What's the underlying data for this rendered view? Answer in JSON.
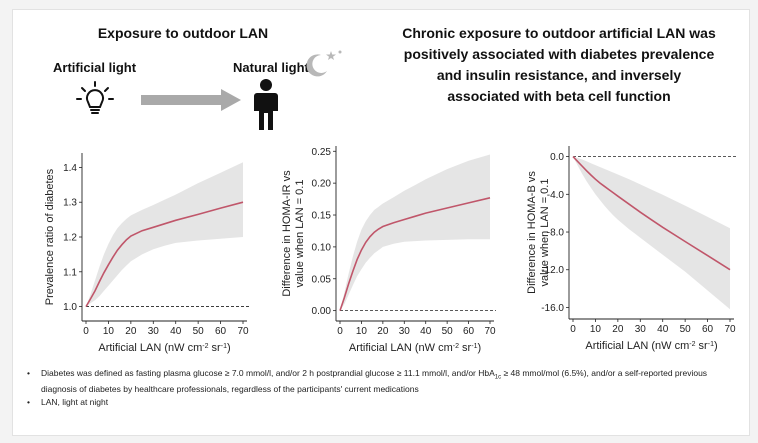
{
  "header": {
    "left_title": "Exposure to outdoor LAN",
    "artificial_label": "Artificial light",
    "natural_label": "Natural light",
    "conclusion_lines": [
      "Chronic exposure to outdoor artificial LAN was",
      "positively associated with diabetes prevalence",
      "and insulin resistance, and inversely",
      "associated with beta cell function"
    ]
  },
  "icons": {
    "bulb": "lightbulb-icon",
    "arrow": "arrow-right-icon",
    "person": "person-icon",
    "moon": "moon-icon",
    "stars": "star-icon"
  },
  "colors": {
    "line": "#c0566a",
    "ci": "#e5e5e5",
    "arrow": "#a9a9a9"
  },
  "chart_data": [
    {
      "type": "line",
      "name": "prevalence",
      "xlabel_main": "Artificial LAN (nW cm",
      "xlabel_sup1": "-2",
      "xlabel_mid": " sr",
      "xlabel_sup2": "-1",
      "xlabel_end": ")",
      "ylabel_lines": [
        "Prevalence ratio of diabetes"
      ],
      "xlim": [
        0,
        70
      ],
      "ylim": [
        0.97,
        1.43
      ],
      "xticks": [
        "0",
        "10",
        "20",
        "30",
        "40",
        "50",
        "60",
        "70"
      ],
      "yticks": [
        "1.0",
        "1.1",
        "1.2",
        "1.3",
        "1.4"
      ],
      "ytick_values": [
        1.0,
        1.1,
        1.2,
        1.3,
        1.4
      ],
      "reference": 1.0,
      "x": [
        0,
        2,
        4,
        6,
        8,
        10,
        12,
        14,
        16,
        18,
        20,
        25,
        30,
        35,
        40,
        50,
        60,
        70
      ],
      "y": [
        1.0,
        1.022,
        1.045,
        1.072,
        1.097,
        1.12,
        1.142,
        1.162,
        1.178,
        1.192,
        1.203,
        1.218,
        1.228,
        1.238,
        1.248,
        1.265,
        1.283,
        1.3
      ],
      "upper": [
        1.0,
        1.035,
        1.075,
        1.115,
        1.15,
        1.18,
        1.205,
        1.225,
        1.24,
        1.252,
        1.262,
        1.278,
        1.292,
        1.307,
        1.322,
        1.355,
        1.385,
        1.415
      ],
      "lower": [
        1.0,
        1.01,
        1.018,
        1.03,
        1.045,
        1.06,
        1.075,
        1.09,
        1.105,
        1.118,
        1.13,
        1.15,
        1.165,
        1.175,
        1.183,
        1.19,
        1.195,
        1.2
      ]
    },
    {
      "type": "line",
      "name": "homa-ir",
      "xlabel_main": "Artificial LAN (nW cm",
      "xlabel_sup1": "-2",
      "xlabel_mid": " sr",
      "xlabel_sup2": "-1",
      "xlabel_end": ")",
      "ylabel_lines": [
        "Difference in HOMA-IR vs",
        "value when LAN = 0.1"
      ],
      "xlim": [
        0,
        70
      ],
      "ylim": [
        -0.01,
        0.252
      ],
      "xticks": [
        "0",
        "10",
        "20",
        "30",
        "40",
        "50",
        "60",
        "70"
      ],
      "yticks": [
        "0.00",
        "0.05",
        "0.10",
        "0.15",
        "0.20",
        "0.25"
      ],
      "ytick_values": [
        0.0,
        0.05,
        0.1,
        0.15,
        0.2,
        0.25
      ],
      "reference": 0.0,
      "x": [
        0,
        2,
        4,
        6,
        8,
        10,
        12,
        14,
        16,
        18,
        20,
        25,
        30,
        35,
        40,
        50,
        60,
        70
      ],
      "y": [
        0.0,
        0.02,
        0.042,
        0.062,
        0.08,
        0.095,
        0.107,
        0.116,
        0.123,
        0.128,
        0.132,
        0.138,
        0.143,
        0.148,
        0.153,
        0.161,
        0.169,
        0.177
      ],
      "upper": [
        0.0,
        0.028,
        0.058,
        0.085,
        0.108,
        0.127,
        0.14,
        0.15,
        0.158,
        0.163,
        0.168,
        0.178,
        0.188,
        0.197,
        0.206,
        0.222,
        0.235,
        0.245
      ],
      "lower": [
        0.0,
        0.01,
        0.025,
        0.04,
        0.054,
        0.065,
        0.075,
        0.083,
        0.09,
        0.095,
        0.1,
        0.105,
        0.108,
        0.109,
        0.11,
        0.111,
        0.112,
        0.112
      ]
    },
    {
      "type": "line",
      "name": "homa-b",
      "xlabel_main": "Artificial LAN (nW cm",
      "xlabel_sup1": "-2",
      "xlabel_mid": " sr",
      "xlabel_sup2": "-1",
      "xlabel_end": ")",
      "ylabel_lines": [
        "Difference in HOMA-B vs",
        "value when LAN = 0.1"
      ],
      "xlim": [
        0,
        70
      ],
      "ylim": [
        -16.8,
        0.7
      ],
      "xticks": [
        "0",
        "10",
        "20",
        "30",
        "40",
        "50",
        "60",
        "70"
      ],
      "yticks": [
        "0.0",
        "-4.0",
        "-8.0",
        "-12.0",
        "-16.0"
      ],
      "ytick_values": [
        0.0,
        -4.0,
        -8.0,
        -12.0,
        -16.0
      ],
      "reference": 0.0,
      "x": [
        0,
        2,
        4,
        6,
        8,
        10,
        12,
        14,
        16,
        18,
        20,
        25,
        30,
        35,
        40,
        50,
        60,
        70
      ],
      "y": [
        0.0,
        -0.5,
        -1.0,
        -1.5,
        -1.95,
        -2.4,
        -2.8,
        -3.15,
        -3.5,
        -3.85,
        -4.2,
        -5.05,
        -5.9,
        -6.7,
        -7.5,
        -9.0,
        -10.5,
        -12.0
      ],
      "upper": [
        0.0,
        -0.15,
        -0.3,
        -0.5,
        -0.7,
        -0.9,
        -1.1,
        -1.3,
        -1.5,
        -1.7,
        -1.9,
        -2.4,
        -2.95,
        -3.5,
        -4.05,
        -5.2,
        -6.4,
        -7.6
      ],
      "lower": [
        0.0,
        -0.9,
        -1.8,
        -2.6,
        -3.3,
        -4.0,
        -4.6,
        -5.2,
        -5.75,
        -6.25,
        -6.7,
        -7.7,
        -8.6,
        -9.5,
        -10.4,
        -12.2,
        -14.2,
        -16.2
      ]
    }
  ],
  "notes": [
    {
      "a": "Diabetes was defined as fasting plasma glucose ≥ 7.0 mmol/l, and/or 2 h postprandial glucose ≥ 11.1 mmol/l, and/or HbA",
      "sub": "1c",
      "b": " ≥ 48 mmol/mol (6.5%), and/or a self-reported previous diagnosis of diabetes by healthcare professionals, regardless of the participants' current medications"
    },
    {
      "a": "LAN, light at night",
      "sub": "",
      "b": ""
    }
  ],
  "bullet_char": "•"
}
